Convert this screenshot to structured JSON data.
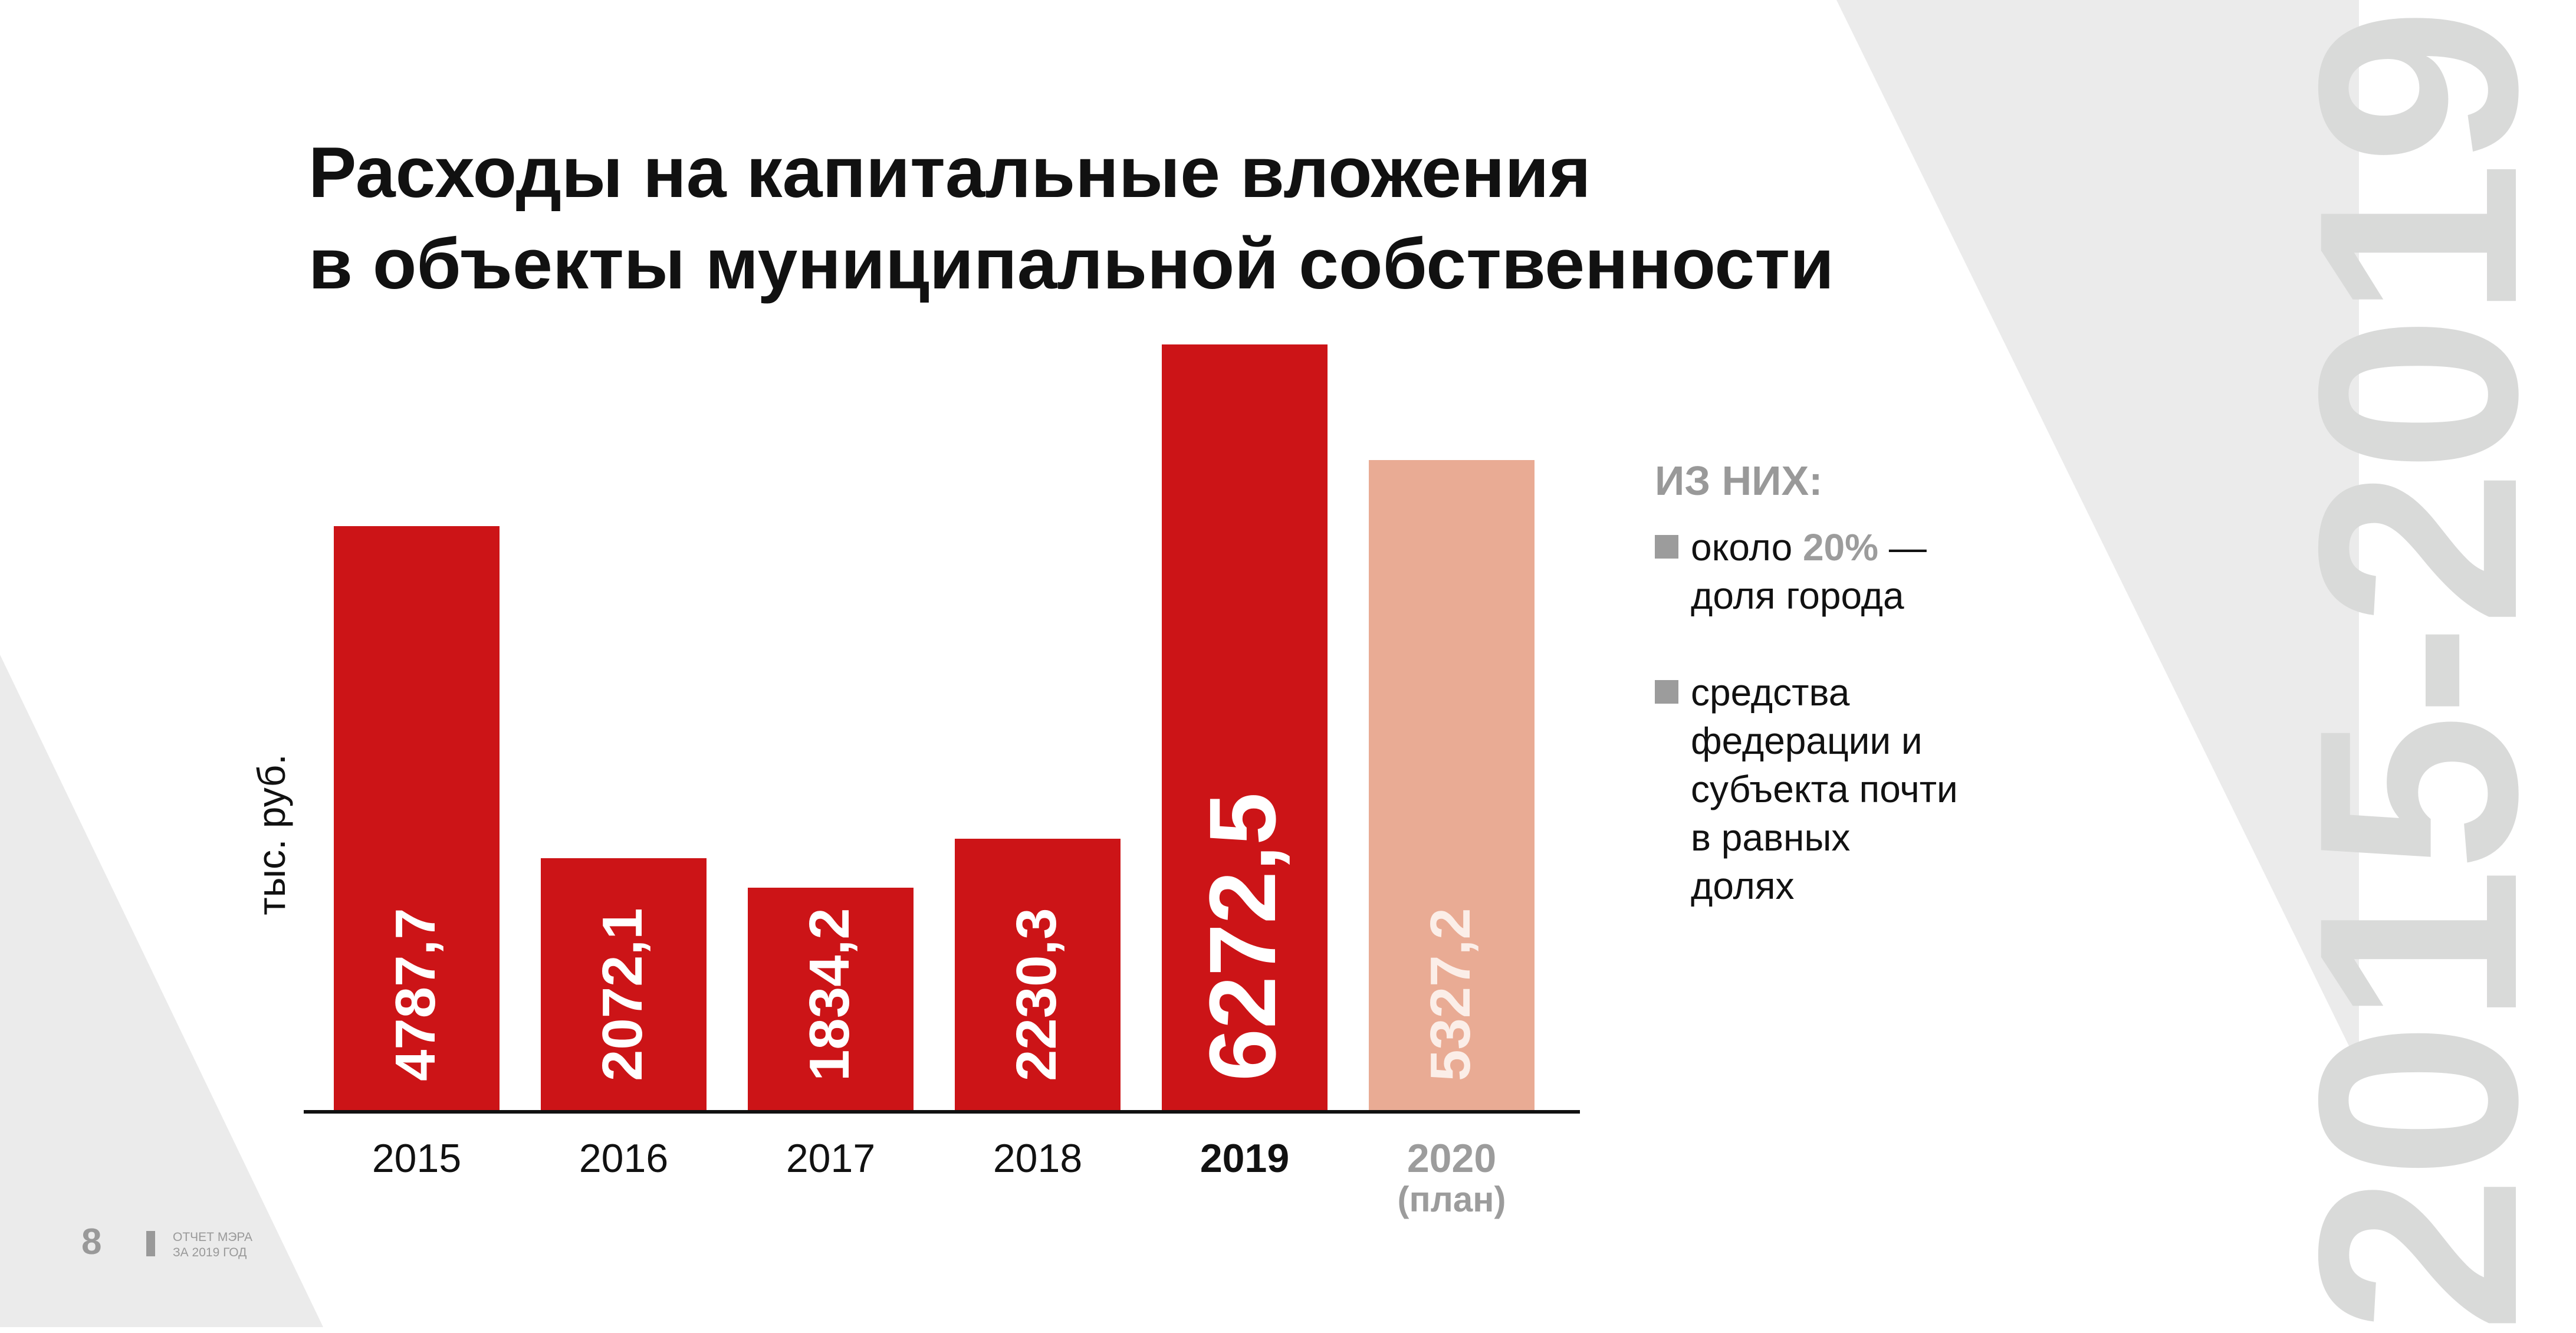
{
  "title": {
    "line1": "Расходы на капитальные вложения",
    "line2": "в объекты муниципальной собственности"
  },
  "side_year": "2015-2019",
  "colors": {
    "bar": "#cc1417",
    "bar_plan": "#e9ab94",
    "accent_gray": "#9c9c9c",
    "bg_gray": "#ebebeb"
  },
  "chart_data": {
    "type": "bar",
    "title": "Расходы на капитальные вложения в объекты муниципальной собственности",
    "ylabel": "тыс. руб.",
    "xlabel": "",
    "categories": [
      "2015",
      "2016",
      "2017",
      "2018",
      "2019",
      "2020"
    ],
    "category_notes": [
      "",
      "",
      "",
      "",
      "",
      "(план)"
    ],
    "values": [
      4787.7,
      2072.1,
      1834.2,
      2230.3,
      6272.5,
      5327.2
    ],
    "value_labels": [
      "4787,7",
      "2072,1",
      "1834,2",
      "2230,3",
      "6272,5",
      "5327,2"
    ],
    "highlight": "2019",
    "plan": "2020",
    "ylim": [
      0,
      6272.5
    ],
    "grid": false
  },
  "legend": {
    "heading": "ИЗ НИХ:",
    "item1": {
      "pre": "около ",
      "highlight": "20%",
      "post": " —",
      "line2": "доля города"
    },
    "item2": {
      "lines": [
        "средства",
        "федерации и",
        "субъекта почти",
        "в равных",
        "долях"
      ]
    }
  },
  "footer": {
    "page": "8",
    "line1": "ОТЧЕТ МЭРА",
    "line2": "ЗА 2019 ГОД"
  }
}
